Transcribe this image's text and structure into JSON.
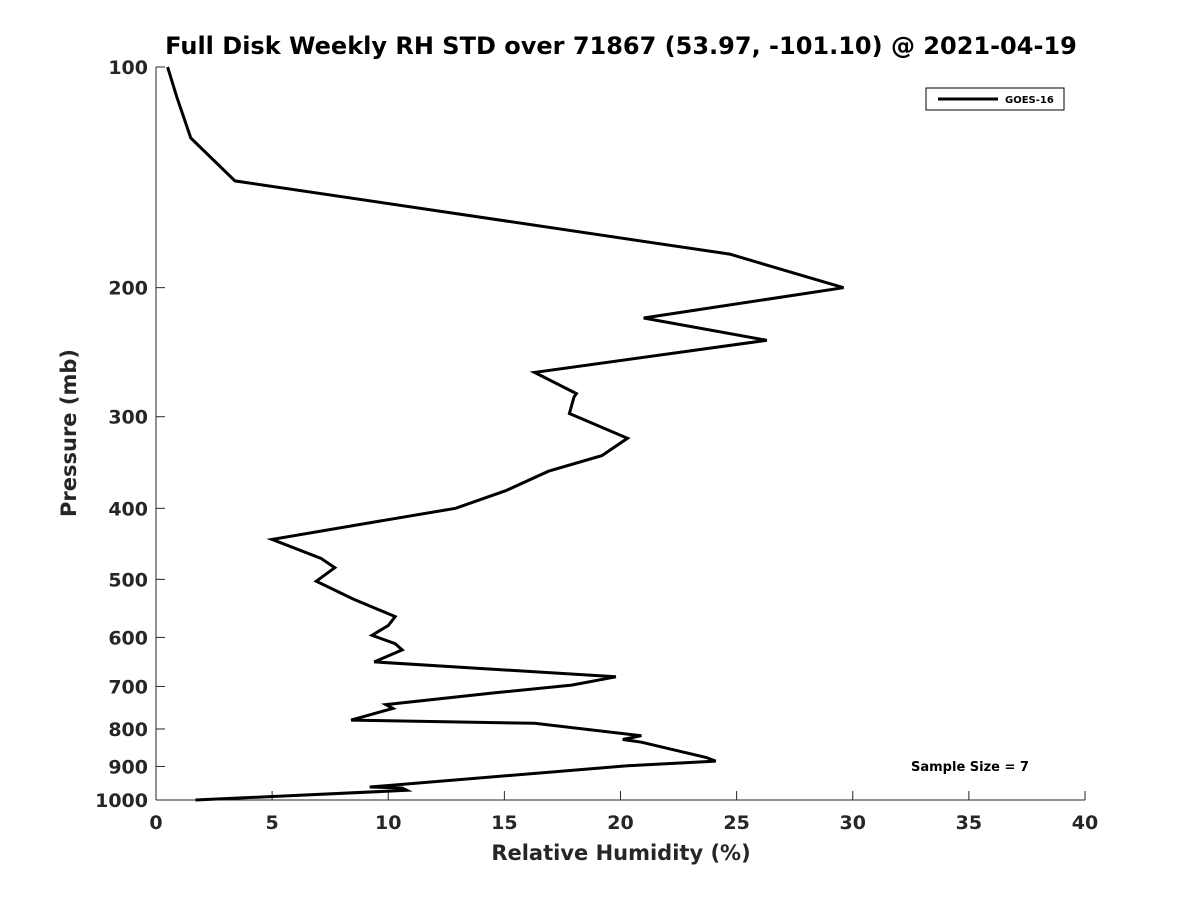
{
  "chart_data": {
    "type": "line",
    "title": "Full Disk Weekly RH STD over 71867 (53.97, -101.10) @ 2021-04-19",
    "xlabel": "Relative Humidity (%)",
    "ylabel": "Pressure (mb)",
    "xlim": [
      0,
      40
    ],
    "ylim": [
      100,
      1000
    ],
    "yscale": "log",
    "y_reversed": true,
    "x_ticks": [
      0,
      5,
      10,
      15,
      20,
      25,
      30,
      35,
      40
    ],
    "x_tick_labels": [
      "0",
      "5",
      "10",
      "15",
      "20",
      "25",
      "30",
      "35",
      "40"
    ],
    "y_ticks": [
      100,
      200,
      300,
      400,
      500,
      600,
      700,
      800,
      900,
      1000
    ],
    "y_tick_labels": [
      "100",
      "200",
      "300",
      "400",
      "500",
      "600",
      "700",
      "800",
      "900",
      "1000"
    ],
    "legend": {
      "position": "top-right",
      "entries": [
        "GOES-16"
      ]
    },
    "annotation": "Sample Size = 7",
    "grid": false,
    "series": [
      {
        "name": "GOES-16",
        "color": "#000000",
        "x": [
          0.5,
          0.9,
          1.5,
          3.4,
          24.7,
          29.6,
          21.0,
          26.3,
          16.3,
          18.1,
          18.0,
          17.8,
          20.3,
          19.2,
          16.9,
          15.1,
          12.9,
          9.5,
          5.0,
          7.1,
          7.7,
          6.9,
          8.5,
          10.3,
          10.0,
          9.3,
          10.3,
          10.6,
          9.4,
          19.8,
          17.9,
          14.6,
          9.9,
          10.2,
          8.4,
          16.3,
          20.9,
          20.1,
          20.9,
          23.7,
          24.1,
          20.3,
          9.2,
          10.6,
          10.8,
          1.7
        ],
        "y": [
          100,
          110,
          125,
          143,
          180,
          200,
          220,
          236,
          261,
          279,
          282,
          297,
          321,
          339,
          356,
          378,
          400,
          417,
          441,
          468,
          482,
          503,
          532,
          562,
          578,
          596,
          612,
          624,
          648,
          679,
          697,
          714,
          741,
          750,
          778,
          786,
          817,
          827,
          834,
          875,
          885,
          898,
          960,
          963,
          970,
          1000
        ]
      }
    ]
  }
}
